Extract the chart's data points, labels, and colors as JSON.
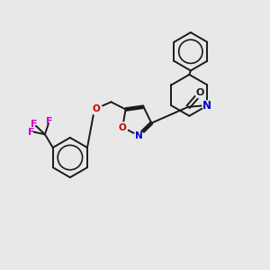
{
  "bg_color": "#e8e8e8",
  "line_color": "#1a1a1a",
  "nitrogen_color": "#0000cc",
  "oxygen_color": "#cc0000",
  "fluorine_color": "#cc00cc",
  "bond_lw": 1.4,
  "xlim": [
    0,
    10
  ],
  "ylim": [
    0,
    10
  ]
}
